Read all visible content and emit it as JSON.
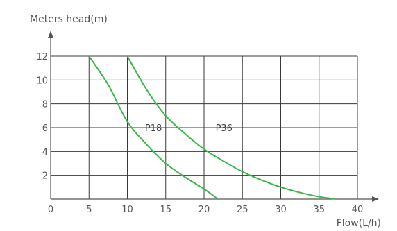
{
  "chart_data": {
    "type": "line",
    "title": "",
    "xlabel": "Flow(L/h)",
    "ylabel": "Meters head(m)",
    "xlim": [
      0,
      40
    ],
    "ylim": [
      0,
      12
    ],
    "x_ticks": [
      "0",
      "5",
      "10",
      "15",
      "20",
      "25",
      "30",
      "35",
      "40"
    ],
    "y_ticks": [
      "2",
      "4",
      "6",
      "8",
      "10",
      "12"
    ],
    "grid": true,
    "colors": {
      "series": "#3cb54a",
      "grid": "#3a3a3a",
      "axis": "#555555",
      "text": "#555555"
    },
    "series": [
      {
        "name": "P18",
        "points": [
          [
            5,
            12
          ],
          [
            7.5,
            9.6
          ],
          [
            10,
            6.5
          ],
          [
            12.5,
            4.6
          ],
          [
            15,
            3.0
          ],
          [
            17.5,
            1.85
          ],
          [
            20,
            0.85
          ],
          [
            21.7,
            0.05
          ]
        ]
      },
      {
        "name": "P36",
        "points": [
          [
            10,
            12
          ],
          [
            12.5,
            9.2
          ],
          [
            15,
            7.0
          ],
          [
            17.5,
            5.5
          ],
          [
            20,
            4.2
          ],
          [
            22.5,
            3.2
          ],
          [
            25,
            2.3
          ],
          [
            27.5,
            1.6
          ],
          [
            30,
            1.0
          ],
          [
            32.5,
            0.55
          ],
          [
            35,
            0.2
          ],
          [
            37,
            0.02
          ]
        ]
      }
    ],
    "annotations": [
      {
        "text": "P18",
        "x": 12.3,
        "y": 6
      },
      {
        "text": "P36",
        "x": 21.5,
        "y": 6
      }
    ]
  }
}
